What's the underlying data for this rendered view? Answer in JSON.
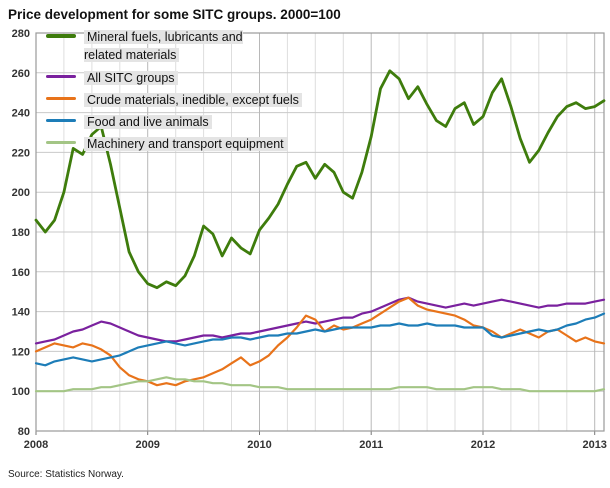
{
  "chart_data": {
    "type": "line",
    "title": "Price development for some SITC groups. 2000=100",
    "source": "Source: Statistics Norway.",
    "x_start_year": 2008,
    "points_per_year": 12,
    "x_tick_labels": [
      "2008",
      "2009",
      "2010",
      "2011",
      "2012",
      "2013"
    ],
    "ylim": [
      80,
      280
    ],
    "ytick_step": 20,
    "grid": true,
    "legend_position": "top-left",
    "series": [
      {
        "name": "Mineral fuels, lubricants and related materials",
        "color": "#3e7c0c",
        "line_width": 2.8,
        "values": [
          186,
          180,
          186,
          200,
          222,
          219,
          229,
          233,
          214,
          192,
          170,
          160,
          154,
          152,
          155,
          153,
          158,
          168,
          183,
          179,
          168,
          177,
          172,
          169,
          181,
          187,
          194,
          204,
          213,
          215,
          207,
          214,
          210,
          200,
          197,
          210,
          228,
          252,
          261,
          257,
          247,
          253,
          244,
          236,
          233,
          242,
          245,
          234,
          238,
          250,
          257,
          243,
          227,
          215,
          221,
          230,
          238,
          243,
          245,
          242,
          243,
          246
        ]
      },
      {
        "name": "All SITC groups",
        "color": "#7a219e",
        "line_width": 2.2,
        "values": [
          124,
          125,
          126,
          128,
          130,
          131,
          133,
          135,
          134,
          132,
          130,
          128,
          127,
          126,
          125,
          125,
          126,
          127,
          128,
          128,
          127,
          128,
          129,
          129,
          130,
          131,
          132,
          133,
          134,
          135,
          134,
          135,
          136,
          137,
          137,
          139,
          140,
          142,
          144,
          146,
          147,
          145,
          144,
          143,
          142,
          143,
          144,
          143,
          144,
          145,
          146,
          145,
          144,
          143,
          142,
          143,
          143,
          144,
          144,
          144,
          145,
          146
        ]
      },
      {
        "name": "Crude materials, inedible, except fuels",
        "color": "#e8731a",
        "line_width": 2.2,
        "values": [
          120,
          122,
          124,
          123,
          122,
          124,
          123,
          121,
          118,
          112,
          108,
          106,
          105,
          103,
          104,
          103,
          105,
          106,
          107,
          109,
          111,
          114,
          117,
          113,
          115,
          118,
          123,
          127,
          132,
          138,
          136,
          130,
          133,
          131,
          132,
          134,
          136,
          139,
          142,
          145,
          147,
          143,
          141,
          140,
          139,
          138,
          136,
          133,
          132,
          130,
          127,
          129,
          131,
          129,
          127,
          130,
          131,
          128,
          125,
          127,
          125,
          124
        ]
      },
      {
        "name": "Food and live animals",
        "color": "#1d7db8",
        "line_width": 2.2,
        "values": [
          114,
          113,
          115,
          116,
          117,
          116,
          115,
          116,
          117,
          118,
          120,
          122,
          123,
          124,
          125,
          124,
          123,
          124,
          125,
          126,
          126,
          127,
          127,
          126,
          127,
          128,
          128,
          129,
          129,
          130,
          131,
          130,
          131,
          132,
          132,
          132,
          132,
          133,
          133,
          134,
          133,
          133,
          134,
          133,
          133,
          133,
          132,
          132,
          132,
          128,
          127,
          128,
          129,
          130,
          131,
          130,
          131,
          133,
          134,
          136,
          137,
          139
        ]
      },
      {
        "name": "Machinery and transport equipment",
        "color": "#a3c585",
        "line_width": 2.2,
        "values": [
          100,
          100,
          100,
          100,
          101,
          101,
          101,
          102,
          102,
          103,
          104,
          105,
          105,
          106,
          107,
          106,
          106,
          105,
          105,
          104,
          104,
          103,
          103,
          103,
          102,
          102,
          102,
          101,
          101,
          101,
          101,
          101,
          101,
          101,
          101,
          101,
          101,
          101,
          101,
          102,
          102,
          102,
          102,
          101,
          101,
          101,
          101,
          102,
          102,
          102,
          101,
          101,
          101,
          100,
          100,
          100,
          100,
          100,
          100,
          100,
          100,
          101
        ]
      }
    ]
  }
}
